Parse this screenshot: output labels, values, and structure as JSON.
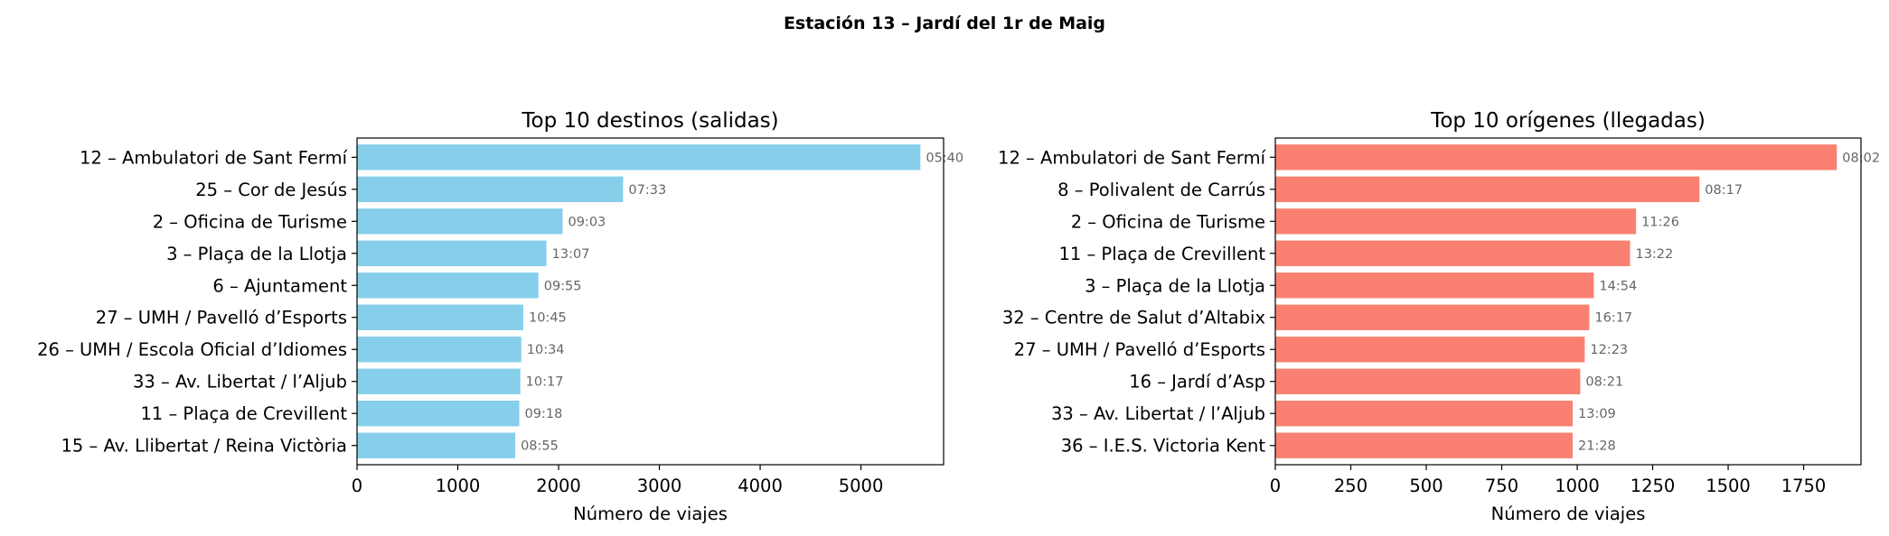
{
  "suptitle": "Estación 13 – Jardí del 1r de Maig",
  "colors": {
    "left": "#87ceeb",
    "right": "#fa8072"
  },
  "chart_data": [
    {
      "type": "bar",
      "orientation": "horizontal",
      "title": "Top 10 destinos (salidas)",
      "xlabel": "Número de viajes",
      "xlim": [
        0,
        5820
      ],
      "xticks": [
        "0",
        "1000",
        "2000",
        "3000",
        "4000",
        "5000"
      ],
      "xtick_values": [
        0,
        1000,
        2000,
        3000,
        4000,
        5000
      ],
      "categories": [
        "12 – Ambulatori de Sant Fermí",
        "25 – Cor de Jesús",
        "2 – Oficina de Turisme",
        "3 – Plaça de la Llotja",
        "6 – Ajuntament",
        "27 – UMH / Pavelló d’Esports",
        "26 – UMH / Escola Oficial d’Idiomes",
        "33 – Av. Libertat / l’Aljub",
        "11 – Plaça de Crevillent",
        "15 – Av. Llibertat / Reina Victòria"
      ],
      "values": [
        5590,
        2640,
        2040,
        1880,
        1800,
        1650,
        1630,
        1620,
        1610,
        1570
      ],
      "bar_labels": [
        "05:40",
        "07:33",
        "09:03",
        "13:07",
        "09:55",
        "10:45",
        "10:34",
        "10:17",
        "09:18",
        "08:55"
      ]
    },
    {
      "type": "bar",
      "orientation": "horizontal",
      "title": "Top 10 orígenes (llegadas)",
      "xlabel": "Número de viajes",
      "xlim": [
        0,
        1940
      ],
      "xticks": [
        "0",
        "250",
        "500",
        "750",
        "1000",
        "1250",
        "1500",
        "1750"
      ],
      "xtick_values": [
        0,
        250,
        500,
        750,
        1000,
        1250,
        1500,
        1750
      ],
      "categories": [
        "12 – Ambulatori de Sant Fermí",
        "8 – Polivalent de Carrús",
        "2 – Oficina de Turisme",
        "11 – Plaça de Crevillent",
        "3 – Plaça de la Llotja",
        "32 – Centre de Salut d’Altabix",
        "27 – UMH / Pavelló d’Esports",
        "16 – Jardí d’Asp",
        "33 – Av. Libertat / l’Aljub",
        "36 – I.E.S. Victoria Kent"
      ],
      "values": [
        1860,
        1405,
        1195,
        1175,
        1055,
        1040,
        1025,
        1010,
        985,
        985
      ],
      "bar_labels": [
        "08:02",
        "08:17",
        "11:26",
        "13:22",
        "14:54",
        "16:17",
        "12:23",
        "08:21",
        "13:09",
        "21:28"
      ]
    }
  ]
}
